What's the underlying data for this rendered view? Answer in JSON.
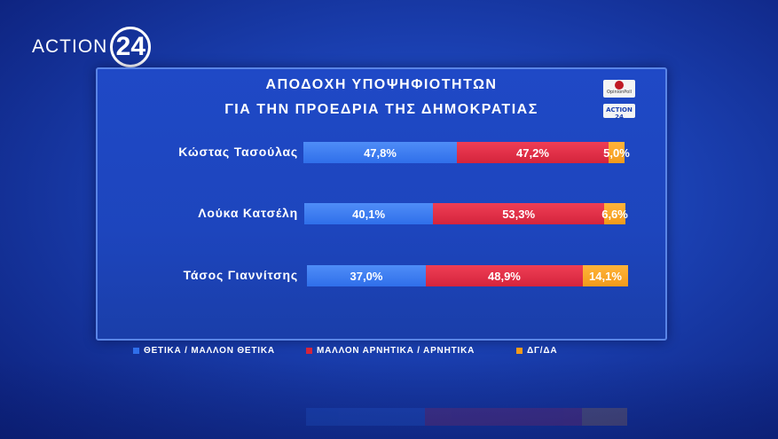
{
  "brand": {
    "word": "ACTION",
    "number": "24"
  },
  "chart_data": {
    "type": "bar",
    "stacked": true,
    "orientation": "horizontal",
    "title": "ΑΠΟΔΟΧΗ ΥΠΟΨΗΦΙΟΤΗΤΩΝ",
    "subtitle": "ΓΙΑ ΤΗΝ ΠΡΟΕΔΡΙΑ ΤΗΣ ΔΗΜΟΚΡΑΤΙΑΣ",
    "categories": [
      "Κώστας Τασούλας",
      "Λούκα Κατσέλη",
      "Τάσος Γιαννίτσης"
    ],
    "series": [
      {
        "name": "ΘΕΤΙΚΑ / ΜΑΛΛΟΝ ΘΕΤΙΚΑ",
        "values": [
          47.8,
          40.1,
          37.0
        ],
        "labels": [
          "47,8%",
          "40,1%",
          "37,0%"
        ],
        "color": "#2f6fea"
      },
      {
        "name": "ΜΑΛΛΟΝ ΑΡΝΗΤΙΚΑ / ΑΡΝΗΤΙΚΑ",
        "values": [
          47.2,
          53.3,
          48.9
        ],
        "labels": [
          "47,2%",
          "53,3%",
          "48,9%"
        ],
        "color": "#d4243c"
      },
      {
        "name": "ΔΓ/ΔΑ",
        "values": [
          5.0,
          6.6,
          14.1
        ],
        "labels": [
          "5,0%",
          "6,6%",
          "14,1%"
        ],
        "color": "#f39a1a"
      }
    ],
    "legend_position": "bottom"
  },
  "badges": {
    "pollster": "OpinionPoll",
    "channel": "ACTION 24"
  }
}
